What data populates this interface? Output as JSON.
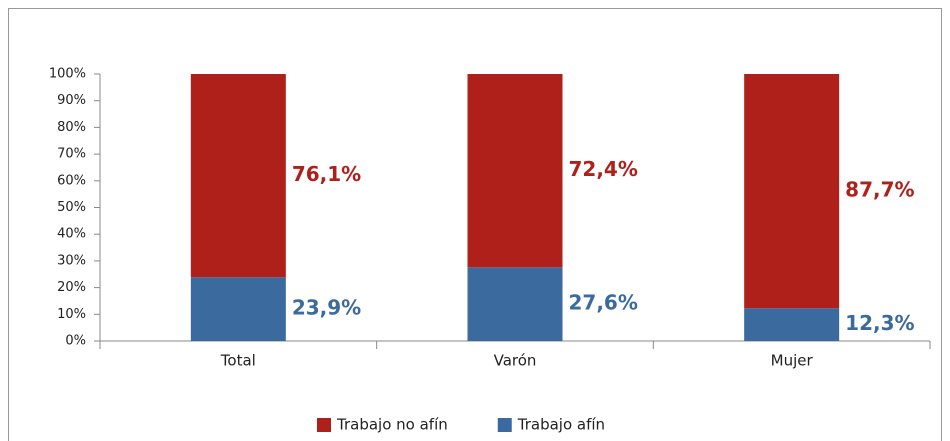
{
  "chart_data": {
    "type": "stacked_bar",
    "categories": [
      "Total",
      "Varón",
      "Mujer"
    ],
    "series": [
      {
        "name": "Trabajo no afín",
        "color": "#b0201b",
        "values": [
          76.1,
          72.4,
          87.7
        ],
        "value_labels": [
          "76,1%",
          "72,4%",
          "87,7%"
        ]
      },
      {
        "name": "Trabajo afín",
        "color": "#3a6a9e",
        "values": [
          23.9,
          27.6,
          12.3
        ],
        "value_labels": [
          "23,9%",
          "27,6%",
          "12,3%"
        ]
      }
    ],
    "ylim": [
      0,
      100
    ],
    "yticks": [
      {
        "value": 0,
        "label": "0%"
      },
      {
        "value": 10,
        "label": "10%"
      },
      {
        "value": 20,
        "label": "20%"
      },
      {
        "value": 30,
        "label": "30%"
      },
      {
        "value": 40,
        "label": "40%"
      },
      {
        "value": 50,
        "label": "50%"
      },
      {
        "value": 60,
        "label": "60%"
      },
      {
        "value": 70,
        "label": "70%"
      },
      {
        "value": 80,
        "label": "80%"
      },
      {
        "value": 90,
        "label": "90%"
      },
      {
        "value": 100,
        "label": "100%"
      }
    ],
    "grid": false,
    "legend": "bottom"
  }
}
